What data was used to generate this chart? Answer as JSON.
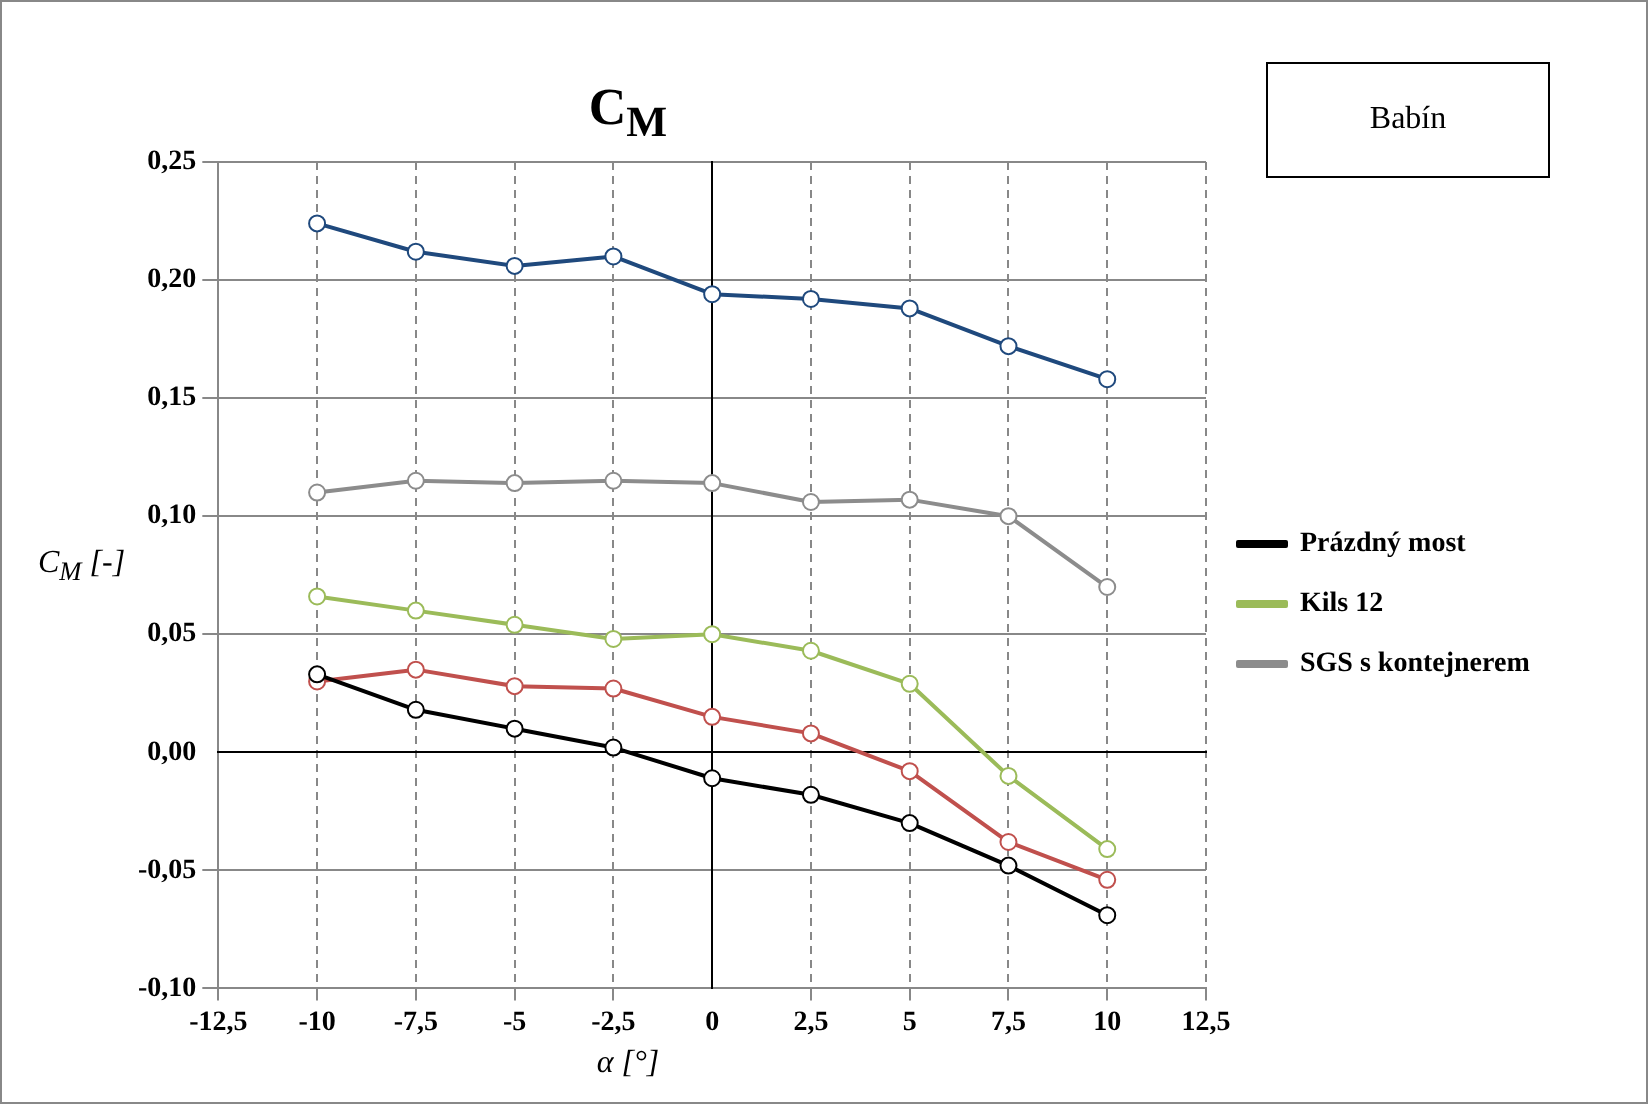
{
  "chart_data": {
    "type": "line",
    "title": "C$_{M}$",
    "xlabel": "α [°]",
    "ylabel": "C$_{M}$ [-]",
    "annotations": [
      "Babín"
    ],
    "x": [
      -10,
      -7.5,
      -5,
      -2.5,
      0,
      2.5,
      5,
      7.5,
      10
    ],
    "series": [
      {
        "name": "Prázdný most",
        "color": "#000000",
        "values": [
          0.033,
          0.018,
          0.01,
          0.002,
          -0.011,
          -0.018,
          -0.03,
          -0.048,
          -0.069
        ]
      },
      {
        "color": "#c0504d",
        "values": [
          0.03,
          0.035,
          0.028,
          0.027,
          0.015,
          0.008,
          -0.008,
          -0.038,
          -0.054
        ]
      },
      {
        "name": "Kils 12",
        "color": "#9bbb59",
        "values": [
          0.066,
          0.06,
          0.054,
          0.048,
          0.05,
          0.043,
          0.029,
          -0.01,
          -0.041
        ]
      },
      {
        "name": "SGS s kontejnerem",
        "color": "#8c8c8c",
        "values": [
          0.11,
          0.115,
          0.114,
          0.115,
          0.114,
          0.106,
          0.107,
          0.1,
          0.07
        ]
      },
      {
        "color": "#1f497d",
        "values": [
          0.224,
          0.212,
          0.206,
          0.21,
          0.194,
          0.192,
          0.188,
          0.172,
          0.158
        ]
      }
    ],
    "xlim": [
      -12.5,
      12.5
    ],
    "xticks": [
      {
        "value": -12.5,
        "label": "-12,5"
      },
      {
        "value": -10,
        "label": "-10"
      },
      {
        "value": -7.5,
        "label": "-7,5"
      },
      {
        "value": -5,
        "label": "-5"
      },
      {
        "value": -2.5,
        "label": "-2,5"
      },
      {
        "value": 0,
        "label": "0"
      },
      {
        "value": 2.5,
        "label": "2,5"
      },
      {
        "value": 5,
        "label": "5"
      },
      {
        "value": 7.5,
        "label": "7,5"
      },
      {
        "value": 10,
        "label": "10"
      },
      {
        "value": 12.5,
        "label": "12,5"
      }
    ],
    "ylim": [
      -0.1,
      0.25
    ],
    "yticks": [
      {
        "value": -0.1,
        "label": "-0,10"
      },
      {
        "value": -0.05,
        "label": "-0,05"
      },
      {
        "value": 0,
        "label": "0,00"
      },
      {
        "value": 0.05,
        "label": "0,05"
      },
      {
        "value": 0.1,
        "label": "0,10"
      },
      {
        "value": 0.15,
        "label": "0,15"
      },
      {
        "value": 0.2,
        "label": "0,20"
      },
      {
        "value": 0.25,
        "label": "0,25"
      }
    ],
    "grid": true,
    "legend": "right",
    "marker": "circle",
    "line_style": "solid"
  }
}
